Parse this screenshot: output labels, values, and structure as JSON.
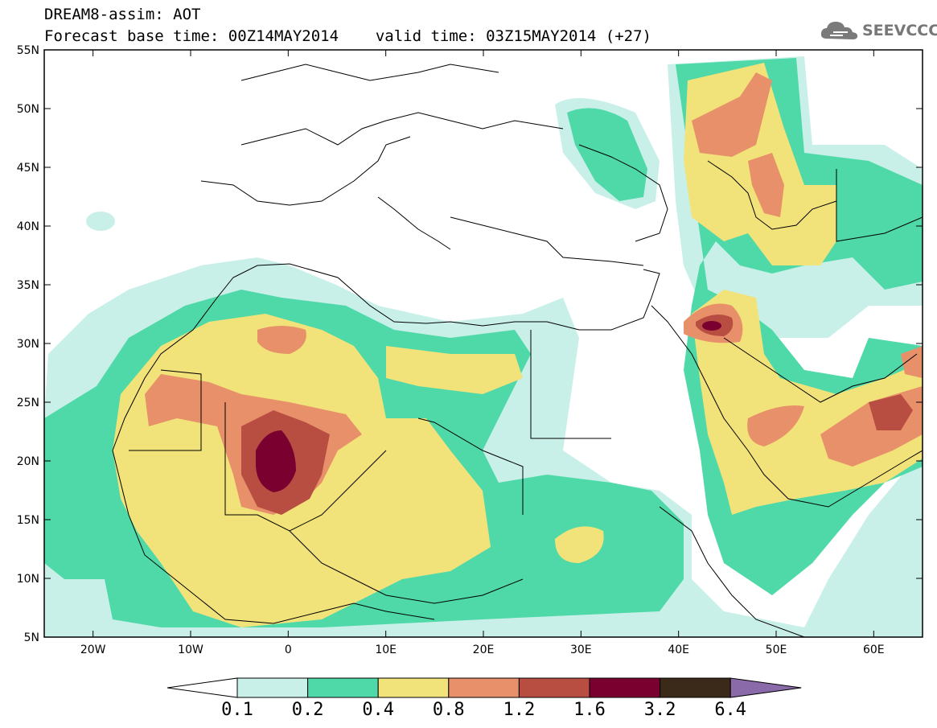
{
  "title": {
    "line1": "DREAM8-assim: AOT",
    "base_time_label": "Forecast base time: 00Z14MAY2014",
    "valid_time_label": "valid time: 03Z15MAY2014 (+27)"
  },
  "logo": {
    "text": "SEEVCCC",
    "icon": "cloud-icon"
  },
  "map": {
    "lat_labels": [
      "55N",
      "50N",
      "45N",
      "40N",
      "35N",
      "30N",
      "25N",
      "20N",
      "15N",
      "10N",
      "5N"
    ],
    "lon_labels": [
      "20W",
      "10W",
      "0",
      "10E",
      "20E",
      "30E",
      "40E",
      "50E",
      "60E"
    ],
    "lat_range": [
      5,
      55
    ],
    "lon_range": [
      -25,
      65
    ]
  },
  "colorbar": {
    "labels": [
      "0.1",
      "0.2",
      "0.4",
      "0.8",
      "1.2",
      "1.6",
      "3.2",
      "6.4"
    ],
    "colors": [
      "#ffffff",
      "#c8f0e8",
      "#4fd9a8",
      "#f2e27a",
      "#e8906a",
      "#b84e42",
      "#7a0030",
      "#3b2a1a",
      "#8a6aa8"
    ]
  }
}
